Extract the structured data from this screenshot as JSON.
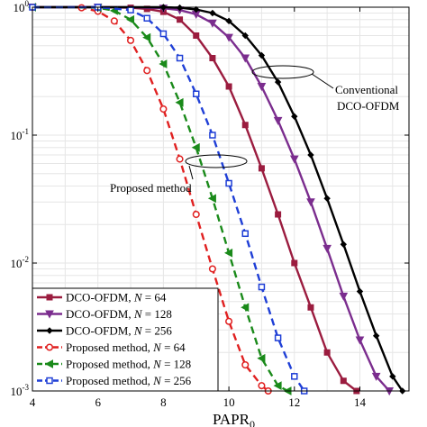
{
  "chart_data": {
    "type": "line",
    "xlabel": "PAPR",
    "xlabel_sub": "0",
    "ylabel": "",
    "xlim": [
      4,
      15.5
    ],
    "ylim": [
      0.001,
      1
    ],
    "yscale": "log",
    "grid": true,
    "x_ticks": [
      "4",
      "6",
      "8",
      "10",
      "12",
      "14"
    ],
    "y_ticks": [
      {
        "base": "10",
        "exp": "0"
      },
      {
        "base": "10",
        "exp": "-1"
      },
      {
        "base": "10",
        "exp": "-2"
      },
      {
        "base": "10",
        "exp": "-3"
      }
    ],
    "legend_position": "bottom-left",
    "annotations": {
      "conventional": [
        "Conventional",
        "DCO-OFDM"
      ],
      "proposed": "Proposed method"
    },
    "series": [
      {
        "name_prefix": "DCO-OFDM,",
        "n_label": "N",
        "n_value": "64",
        "color": "#9b1c3f",
        "marker": "square",
        "linestyle": "solid",
        "x": [
          4,
          5,
          6,
          7,
          7.5,
          8,
          8.5,
          9,
          9.5,
          10,
          10.5,
          11,
          11.5,
          12,
          12.5,
          13,
          13.5,
          13.9
        ],
        "y": [
          1,
          1,
          1,
          0.99,
          0.97,
          0.92,
          0.8,
          0.6,
          0.4,
          0.24,
          0.12,
          0.055,
          0.024,
          0.01,
          0.0045,
          0.002,
          0.0012,
          0.001
        ]
      },
      {
        "name_prefix": "DCO-OFDM,",
        "n_label": "N",
        "n_value": "128",
        "color": "#7b2d8e",
        "marker": "triangle-down",
        "linestyle": "solid",
        "x": [
          4,
          5,
          6,
          7,
          8,
          8.5,
          9,
          9.5,
          10,
          10.5,
          11,
          11.5,
          12,
          12.5,
          13,
          13.5,
          14,
          14.5,
          14.9
        ],
        "y": [
          1,
          1,
          1,
          1,
          0.98,
          0.95,
          0.88,
          0.75,
          0.58,
          0.4,
          0.24,
          0.13,
          0.065,
          0.03,
          0.013,
          0.0055,
          0.0025,
          0.0013,
          0.001
        ]
      },
      {
        "name_prefix": "DCO-OFDM,",
        "n_label": "N",
        "n_value": "256",
        "color": "#000000",
        "marker": "diamond",
        "linestyle": "solid",
        "x": [
          4,
          5,
          6,
          7,
          8,
          8.5,
          9,
          9.5,
          10,
          10.5,
          11,
          11.5,
          12,
          12.5,
          13,
          13.5,
          14,
          14.5,
          15,
          15.3
        ],
        "y": [
          1,
          1,
          1,
          1,
          1,
          0.99,
          0.96,
          0.9,
          0.78,
          0.6,
          0.42,
          0.26,
          0.14,
          0.07,
          0.032,
          0.014,
          0.006,
          0.0027,
          0.0013,
          0.001
        ]
      },
      {
        "name_prefix": "Proposed method,",
        "n_label": "N",
        "n_value": "64",
        "color": "#e02020",
        "marker": "circle",
        "linestyle": "dashed",
        "x": [
          4,
          5,
          5.5,
          6,
          6.5,
          7,
          7.5,
          8,
          8.5,
          9,
          9.5,
          10,
          10.5,
          11,
          11.2
        ],
        "y": [
          1,
          1,
          0.99,
          0.93,
          0.78,
          0.55,
          0.32,
          0.16,
          0.065,
          0.024,
          0.009,
          0.0035,
          0.0016,
          0.0011,
          0.001
        ]
      },
      {
        "name_prefix": "Proposed method,",
        "n_label": "N",
        "n_value": "128",
        "color": "#1a8a1a",
        "marker": "triangle-left",
        "linestyle": "dashed",
        "x": [
          4,
          5,
          6,
          6.5,
          7,
          7.5,
          8,
          8.5,
          9,
          9.5,
          10,
          10.5,
          11,
          11.5,
          11.8
        ],
        "y": [
          1,
          1,
          0.99,
          0.94,
          0.8,
          0.58,
          0.36,
          0.18,
          0.08,
          0.032,
          0.012,
          0.0045,
          0.0018,
          0.0011,
          0.001
        ]
      },
      {
        "name_prefix": "Proposed method,",
        "n_label": "N",
        "n_value": "256",
        "color": "#1f3fd6",
        "marker": "square-open",
        "linestyle": "dashed",
        "x": [
          4,
          5,
          6,
          7,
          7.5,
          8,
          8.5,
          9,
          9.5,
          10,
          10.5,
          11,
          11.5,
          12,
          12.3
        ],
        "y": [
          1,
          1,
          1,
          0.95,
          0.82,
          0.62,
          0.4,
          0.21,
          0.1,
          0.042,
          0.017,
          0.0065,
          0.0026,
          0.0013,
          0.001
        ]
      }
    ]
  }
}
